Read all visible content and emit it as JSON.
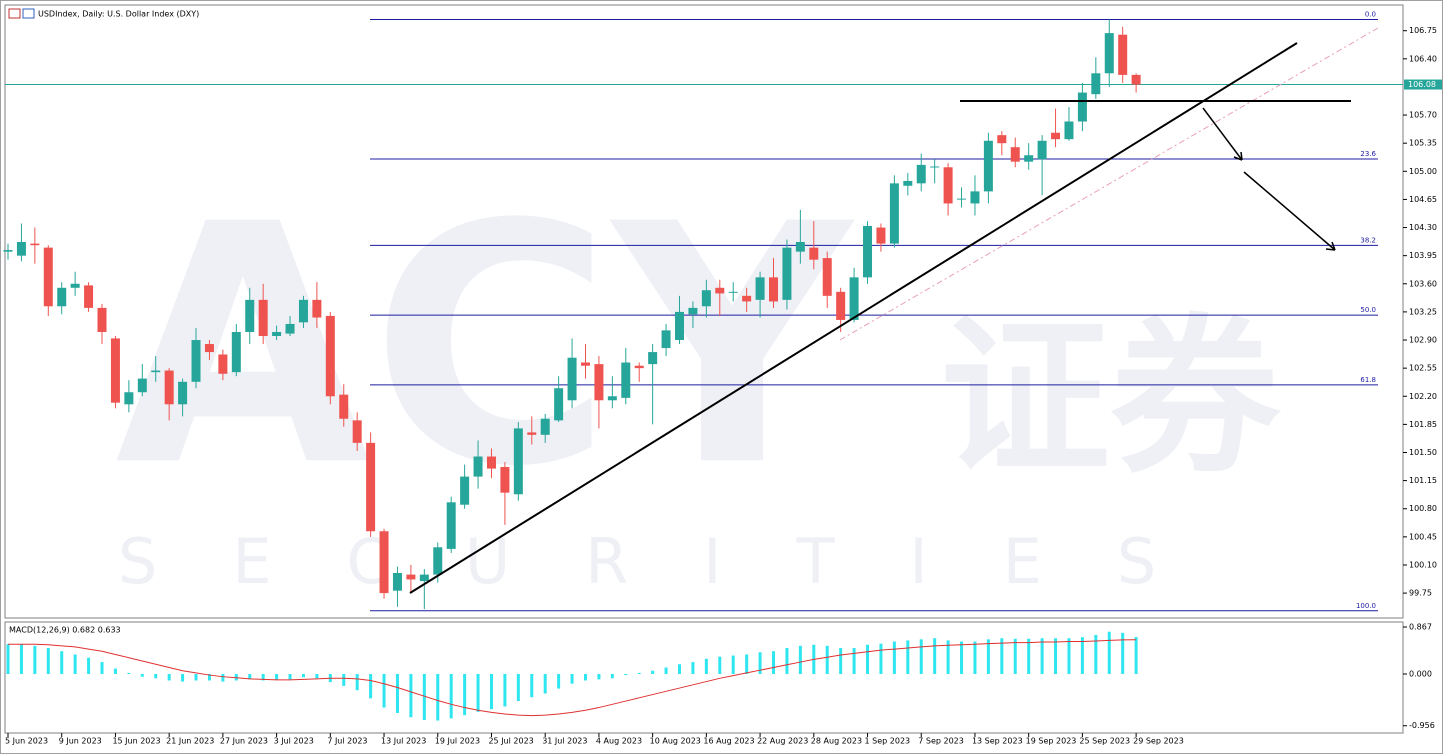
{
  "chart_data": {
    "type": "candlestick",
    "title": "USDIndex, Daily:  U.S. Dollar Index (DXY)",
    "watermark": {
      "logo": "ACY",
      "chinese": "证券",
      "sub": "SECURITIES"
    },
    "categories": [
      "5 Jun 2023",
      null,
      null,
      null,
      "9 Jun 2023",
      null,
      null,
      null,
      "15 Jun 2023",
      null,
      null,
      null,
      "21 Jun 2023",
      null,
      null,
      null,
      "27 Jun 2023",
      null,
      null,
      null,
      "3 Jul 2023",
      null,
      null,
      null,
      "7 Jul 2023",
      null,
      null,
      null,
      "13 Jul 2023",
      null,
      null,
      null,
      "19 Jul 2023",
      null,
      null,
      null,
      "25 Jul 2023",
      null,
      null,
      null,
      "31 Jul 2023",
      null,
      null,
      null,
      "4 Aug 2023",
      null,
      null,
      null,
      "10 Aug 2023",
      null,
      null,
      null,
      "16 Aug 2023",
      null,
      null,
      null,
      "22 Aug 2023",
      null,
      null,
      null,
      "28 Aug 2023",
      null,
      null,
      null,
      "1 Sep 2023",
      null,
      null,
      null,
      "7 Sep 2023",
      null,
      null,
      null,
      "13 Sep 2023",
      null,
      null,
      null,
      "19 Sep 2023",
      null,
      null,
      null,
      "25 Sep 2023",
      null,
      null,
      null,
      "29 Sep 2023"
    ],
    "open": [
      104.0,
      103.95,
      104.1,
      104.05,
      103.32,
      103.55,
      103.58,
      103.3,
      102.92,
      102.1,
      102.25,
      102.5,
      102.52,
      102.1,
      102.38,
      102.85,
      102.72,
      102.5,
      103.0,
      103.4,
      102.95,
      102.98,
      103.12,
      103.4,
      103.2,
      102.22,
      101.9,
      101.62,
      100.52,
      99.78,
      99.98,
      99.9,
      99.98,
      100.3,
      100.85,
      101.2,
      101.45,
      101.32,
      100.98,
      101.75,
      101.72,
      101.9,
      102.15,
      102.62,
      102.6,
      102.15,
      102.18,
      102.58,
      102.6,
      102.8,
      102.9,
      103.22,
      103.32,
      103.55,
      103.5,
      103.45,
      103.4,
      103.68,
      103.4,
      104.0,
      104.05,
      103.92,
      103.5,
      103.15,
      103.68,
      104.3,
      104.1,
      104.82,
      104.85,
      105.05,
      105.05,
      104.65,
      104.6,
      104.75,
      105.45,
      105.3,
      105.12,
      105.15,
      105.48,
      105.4,
      105.62,
      105.96,
      106.22,
      106.7,
      106.2
    ],
    "high": [
      104.1,
      104.35,
      104.3,
      104.08,
      103.62,
      103.75,
      103.62,
      103.35,
      102.95,
      102.4,
      102.6,
      102.7,
      102.55,
      102.42,
      103.05,
      102.9,
      102.78,
      103.1,
      103.55,
      103.6,
      103.08,
      103.2,
      103.45,
      103.62,
      103.25,
      102.35,
      102.0,
      101.75,
      100.55,
      100.08,
      100.1,
      100.05,
      100.38,
      100.95,
      101.35,
      101.65,
      101.55,
      101.38,
      101.88,
      101.95,
      101.98,
      102.45,
      102.92,
      102.85,
      102.7,
      102.45,
      102.8,
      102.62,
      102.85,
      103.1,
      103.45,
      103.38,
      103.65,
      103.65,
      103.62,
      103.55,
      103.75,
      103.92,
      104.15,
      104.52,
      104.38,
      104.0,
      103.55,
      103.8,
      104.38,
      104.35,
      104.95,
      104.98,
      105.22,
      105.15,
      105.1,
      104.8,
      104.95,
      105.48,
      105.5,
      105.42,
      105.35,
      105.45,
      105.78,
      105.8,
      106.1,
      106.42,
      106.89,
      106.8,
      106.22
    ],
    "low": [
      103.9,
      103.88,
      103.85,
      103.2,
      103.22,
      103.45,
      103.25,
      102.85,
      102.05,
      102.0,
      102.2,
      102.38,
      101.9,
      101.95,
      102.3,
      102.65,
      102.4,
      102.45,
      102.85,
      102.85,
      102.9,
      102.95,
      103.05,
      103.05,
      102.1,
      101.82,
      101.52,
      100.45,
      99.68,
      99.58,
      99.75,
      99.55,
      99.88,
      100.25,
      100.8,
      101.05,
      101.18,
      100.6,
      100.9,
      101.6,
      101.62,
      101.88,
      102.05,
      102.42,
      101.8,
      102.05,
      102.1,
      102.38,
      101.85,
      102.7,
      102.85,
      103.05,
      103.18,
      103.2,
      103.38,
      103.25,
      103.18,
      103.3,
      103.28,
      103.85,
      103.78,
      103.3,
      103.0,
      103.12,
      103.6,
      104.0,
      104.05,
      104.7,
      104.75,
      104.85,
      104.45,
      104.55,
      104.45,
      104.6,
      105.2,
      105.05,
      105.02,
      104.7,
      105.3,
      105.38,
      105.5,
      105.9,
      106.05,
      106.1,
      105.98
    ],
    "close": [
      104.02,
      104.12,
      104.08,
      103.32,
      103.55,
      103.6,
      103.3,
      103.0,
      102.12,
      102.25,
      102.42,
      102.52,
      102.1,
      102.38,
      102.9,
      102.75,
      102.48,
      103.0,
      103.4,
      102.95,
      103.0,
      103.1,
      103.4,
      103.18,
      102.2,
      101.92,
      101.62,
      100.52,
      99.75,
      100.0,
      99.92,
      99.98,
      100.32,
      100.88,
      101.2,
      101.45,
      101.3,
      101.0,
      101.8,
      101.72,
      101.92,
      102.3,
      102.68,
      102.58,
      102.15,
      102.2,
      102.62,
      102.55,
      102.75,
      103.02,
      103.25,
      103.3,
      103.52,
      103.48,
      103.5,
      103.38,
      103.68,
      103.38,
      104.05,
      104.12,
      103.9,
      103.45,
      103.15,
      103.68,
      104.32,
      104.1,
      104.85,
      104.88,
      105.08,
      105.06,
      104.6,
      104.66,
      104.75,
      105.38,
      105.35,
      105.12,
      105.2,
      105.38,
      105.4,
      105.62,
      105.98,
      106.22,
      106.72,
      106.2,
      106.08
    ],
    "up_color": "#26a69a",
    "down_color": "#ef5350",
    "ylim": [
      99.44,
      107.07
    ],
    "yticks": [
      99.75,
      {
        "value": 100.1,
        "label": "100.10"
      },
      100.45,
      {
        "value": 100.8,
        "label": "100.80"
      },
      101.15,
      {
        "value": 101.5,
        "label": "101.50"
      },
      101.85,
      {
        "value": 102.2,
        "label": "102.20"
      },
      102.55,
      {
        "value": 102.9,
        "label": "102.90"
      },
      103.25,
      {
        "value": 103.6,
        "label": "103.60"
      },
      103.95,
      {
        "value": 104.3,
        "label": "104.30"
      },
      104.65,
      {
        "value": 105,
        "label": "105.00"
      },
      105.35,
      {
        "value": 105.7,
        "label": "105.70"
      },
      {
        "value": 106.4,
        "label": "106.40"
      },
      106.75
    ],
    "last_price": 106.08,
    "last_price_color": "#26a69a",
    "fibonacci": {
      "high": 106.89,
      "low": 99.53,
      "color": "#1c1ca0",
      "levels": [
        {
          "value": 0,
          "label": "0.0"
        },
        23.6,
        38.2,
        {
          "value": 50,
          "label": "50.0"
        },
        61.8,
        {
          "value": 100,
          "label": "100.0"
        }
      ]
    },
    "macd": {
      "label": "MACD(12,26,9) 0.682 0.633",
      "ylim": [
        -1.09,
        0.96
      ],
      "yticks": [
        -0.956,
        {
          "value": 0,
          "label": "0.000"
        },
        0.867
      ],
      "histogram_color": "#2ee6f0",
      "signal_color": "#e03030",
      "histogram": [
        0.55,
        0.55,
        0.52,
        0.48,
        0.42,
        0.36,
        0.3,
        0.22,
        0.1,
        0.02,
        -0.05,
        -0.08,
        -0.12,
        -0.14,
        -0.12,
        -0.12,
        -0.14,
        -0.12,
        -0.1,
        -0.12,
        -0.11,
        -0.1,
        -0.06,
        -0.08,
        -0.15,
        -0.22,
        -0.3,
        -0.45,
        -0.62,
        -0.72,
        -0.8,
        -0.85,
        -0.86,
        -0.82,
        -0.76,
        -0.7,
        -0.65,
        -0.6,
        -0.5,
        -0.43,
        -0.36,
        -0.27,
        -0.18,
        -0.12,
        -0.1,
        -0.08,
        -0.02,
        0.02,
        0.06,
        0.12,
        0.18,
        0.22,
        0.28,
        0.32,
        0.34,
        0.36,
        0.4,
        0.42,
        0.48,
        0.52,
        0.54,
        0.52,
        0.48,
        0.48,
        0.54,
        0.56,
        0.6,
        0.62,
        0.64,
        0.66,
        0.62,
        0.6,
        0.6,
        0.64,
        0.66,
        0.65,
        0.65,
        0.66,
        0.66,
        0.66,
        0.68,
        0.72,
        0.78,
        0.76,
        0.682
      ],
      "signal": [
        0.55,
        0.55,
        0.55,
        0.54,
        0.52,
        0.5,
        0.46,
        0.42,
        0.36,
        0.3,
        0.24,
        0.18,
        0.12,
        0.06,
        0.02,
        -0.02,
        -0.05,
        -0.07,
        -0.09,
        -0.1,
        -0.11,
        -0.11,
        -0.1,
        -0.09,
        -0.08,
        -0.08,
        -0.09,
        -0.12,
        -0.18,
        -0.25,
        -0.33,
        -0.41,
        -0.49,
        -0.56,
        -0.62,
        -0.67,
        -0.71,
        -0.74,
        -0.76,
        -0.77,
        -0.76,
        -0.74,
        -0.71,
        -0.67,
        -0.62,
        -0.56,
        -0.5,
        -0.44,
        -0.38,
        -0.32,
        -0.26,
        -0.2,
        -0.14,
        -0.08,
        -0.03,
        0.02,
        0.07,
        0.12,
        0.17,
        0.22,
        0.27,
        0.31,
        0.35,
        0.38,
        0.41,
        0.44,
        0.46,
        0.48,
        0.5,
        0.52,
        0.53,
        0.54,
        0.55,
        0.56,
        0.57,
        0.58,
        0.58,
        0.59,
        0.59,
        0.6,
        0.6,
        0.61,
        0.62,
        0.63,
        0.633
      ]
    }
  }
}
